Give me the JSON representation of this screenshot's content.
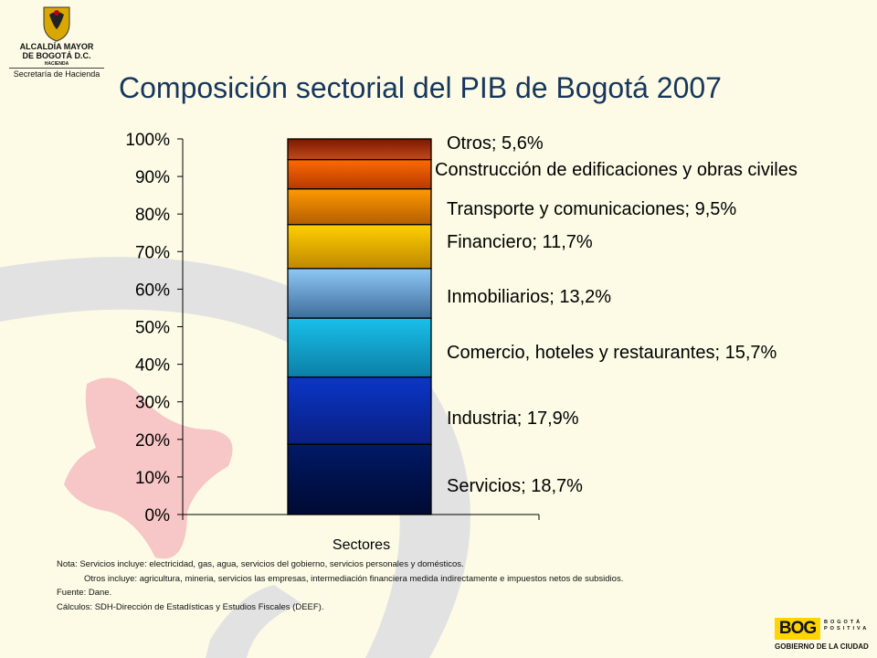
{
  "header": {
    "logo_line1": "ALCALDÍA MAYOR",
    "logo_line2": "DE BOGOTÁ D.C.",
    "logo_line3": "HACIENDA",
    "logo_line4": "Secretaría de Hacienda"
  },
  "chart_data": {
    "type": "bar",
    "stacked": true,
    "title": "Composición sectorial del PIB de Bogotá 2007",
    "categories": [
      "Sectores"
    ],
    "ylim": [
      0,
      100
    ],
    "yticks": [
      "0%",
      "10%",
      "20%",
      "30%",
      "40%",
      "50%",
      "60%",
      "70%",
      "80%",
      "90%",
      "100%"
    ],
    "series": [
      {
        "name": "Servicios",
        "label": "Servicios; 18,7%",
        "value": 18.7,
        "color_top": "#001a66",
        "color_bottom": "#000a33"
      },
      {
        "name": "Industria",
        "label": "Industria; 17,9%",
        "value": 17.9,
        "color_top": "#0a36c8",
        "color_bottom": "#0a1f80"
      },
      {
        "name": "Comercio, hoteles y restaurantes",
        "label": "Comercio, hoteles y restaurantes; 15,7%",
        "value": 15.7,
        "color_top": "#19c0ea",
        "color_bottom": "#0c7fa6"
      },
      {
        "name": "Inmobiliarios",
        "label": "Inmobiliarios; 13,2%",
        "value": 13.2,
        "color_top": "#8ec8f5",
        "color_bottom": "#3f6d9b"
      },
      {
        "name": "Financiero",
        "label": "Financiero; 11,7%",
        "value": 11.7,
        "color_top": "#ffd000",
        "color_bottom": "#c08800"
      },
      {
        "name": "Transporte y comunicaciones",
        "label": "Transporte y comunicaciones; 9,5%",
        "value": 9.5,
        "color_top": "#ff9a00",
        "color_bottom": "#b45e00"
      },
      {
        "name": "Construcción de edificaciones y obras civiles",
        "label": "Construcción de edificaciones y obras civiles",
        "value": 7.8,
        "color_top": "#ff6a00",
        "color_bottom": "#b53a00"
      },
      {
        "name": "Otros",
        "label": "Otros; 5,6%",
        "value": 5.6,
        "color_top": "#7a1800",
        "color_bottom": "#c44a1a"
      }
    ],
    "grid": false,
    "legend": "none"
  },
  "notes": {
    "line1": "Nota:  Servicios incluye:  electricidad, gas, agua, servicios del gobierno, servicios personales y domésticos.",
    "line2": "Otros incluye: agricultura, mineria, servicios  las empresas, intermediación financiera medida indirectamente  e impuestos  netos de subsidios.",
    "line3": "Fuente: Dane.",
    "line4": "Cálculos: SDH-Dirección de Estadísticas  y Estudios  Fiscales (DEEF)."
  },
  "brand": {
    "logo_text": "BOG",
    "tagline": "BOGOTÁ POSITIVA",
    "city_text": "GOBIERNO DE LA CIUDAD"
  },
  "colors": {
    "background": "#fdfbe6",
    "title": "#17365d",
    "decor_gray": "#e2e2e2",
    "decor_pink": "#f7c6c6"
  }
}
